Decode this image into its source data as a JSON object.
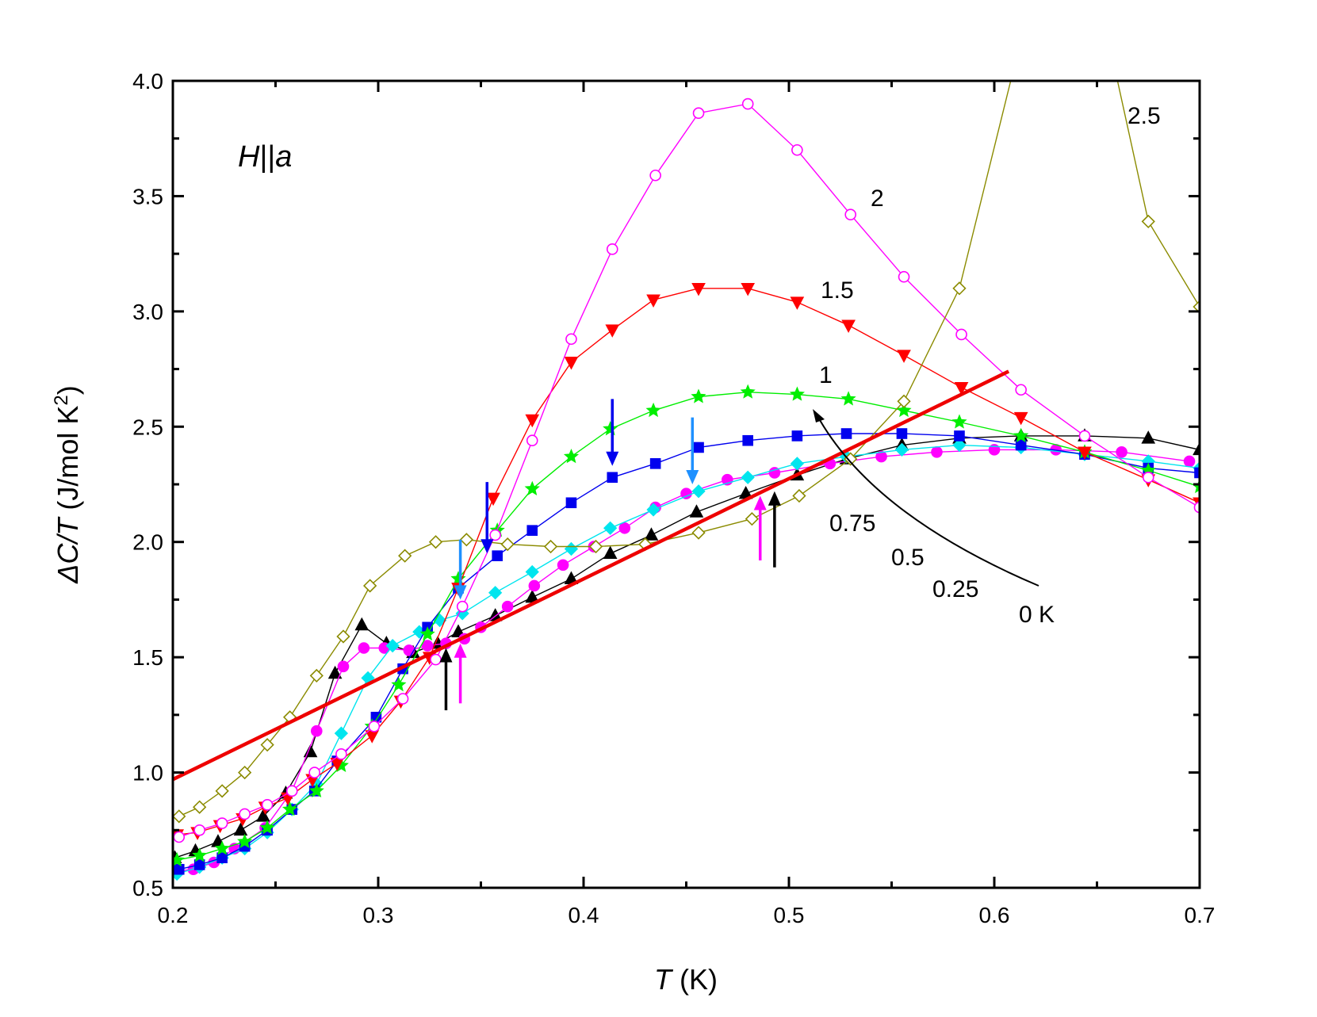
{
  "chart_data": {
    "type": "line",
    "xlabel": {
      "italic": "T",
      "rest": " (K)"
    },
    "ylabel": {
      "italic": "ΔC/T",
      "rest": " (J/mol K",
      "sup": "2",
      "close": ")"
    },
    "xlim": [
      0.2,
      0.7
    ],
    "ylim": [
      0.5,
      4.0
    ],
    "xticks": [
      "0.2",
      "0.3",
      "0.4",
      "0.5",
      "0.6",
      "0.7"
    ],
    "yticks": [
      "0.5",
      "1.0",
      "1.5",
      "2.0",
      "2.5",
      "3.0",
      "3.5",
      "4.0"
    ],
    "annotation": {
      "italic1": "H",
      "bars": "||",
      "italic2": "a"
    },
    "labels": {
      "h2_5": "2.5",
      "h2": "2",
      "h1_5": "1.5",
      "h1": "1",
      "h0_75": "0.75",
      "h0_5": "0.5",
      "h0_25": "0.25",
      "h0": "0 K"
    },
    "series": [
      {
        "name": "0 K",
        "color": "#000000",
        "marker": "triangle-up",
        "filled": true,
        "x": [
          0.201,
          0.211,
          0.222,
          0.233,
          0.244,
          0.255,
          0.267,
          0.279,
          0.292,
          0.304,
          0.317,
          0.329,
          0.339,
          0.357,
          0.375,
          0.394,
          0.413,
          0.433,
          0.455,
          0.479,
          0.504,
          0.528,
          0.555,
          0.583,
          0.613,
          0.644,
          0.675,
          0.7
        ],
        "y": [
          0.63,
          0.66,
          0.7,
          0.75,
          0.81,
          0.91,
          1.09,
          1.43,
          1.64,
          1.56,
          1.52,
          1.56,
          1.61,
          1.68,
          1.76,
          1.84,
          1.95,
          2.03,
          2.13,
          2.21,
          2.29,
          2.36,
          2.42,
          2.45,
          2.46,
          2.46,
          2.45,
          2.4
        ]
      },
      {
        "name": "0.25",
        "color": "#ff00ff",
        "marker": "circle",
        "filled": true,
        "x": [
          0.2,
          0.21,
          0.22,
          0.23,
          0.245,
          0.258,
          0.27,
          0.283,
          0.293,
          0.303,
          0.315,
          0.324,
          0.333,
          0.342,
          0.35,
          0.363,
          0.376,
          0.39,
          0.405,
          0.42,
          0.435,
          0.45,
          0.47,
          0.493,
          0.52,
          0.545,
          0.572,
          0.6,
          0.63,
          0.662,
          0.695
        ],
        "y": [
          0.57,
          0.58,
          0.61,
          0.67,
          0.76,
          0.92,
          1.18,
          1.46,
          1.54,
          1.54,
          1.53,
          1.55,
          1.56,
          1.58,
          1.63,
          1.72,
          1.81,
          1.9,
          1.98,
          2.06,
          2.15,
          2.21,
          2.27,
          2.3,
          2.34,
          2.37,
          2.39,
          2.4,
          2.4,
          2.39,
          2.35
        ]
      },
      {
        "name": "0.5",
        "color": "#00e5ee",
        "marker": "diamond",
        "filled": true,
        "x": [
          0.202,
          0.213,
          0.224,
          0.235,
          0.246,
          0.258,
          0.27,
          0.282,
          0.295,
          0.307,
          0.32,
          0.33,
          0.341,
          0.357,
          0.375,
          0.394,
          0.413,
          0.434,
          0.456,
          0.48,
          0.504,
          0.528,
          0.555,
          0.583,
          0.613,
          0.644,
          0.675,
          0.7
        ],
        "y": [
          0.56,
          0.59,
          0.63,
          0.67,
          0.74,
          0.84,
          0.95,
          1.17,
          1.41,
          1.55,
          1.61,
          1.66,
          1.69,
          1.78,
          1.87,
          1.97,
          2.06,
          2.14,
          2.22,
          2.28,
          2.34,
          2.37,
          2.4,
          2.42,
          2.41,
          2.38,
          2.35,
          2.32
        ]
      },
      {
        "name": "0.75",
        "color": "#0000ee",
        "marker": "square",
        "filled": true,
        "x": [
          0.203,
          0.213,
          0.224,
          0.235,
          0.246,
          0.258,
          0.269,
          0.28,
          0.299,
          0.312,
          0.324,
          0.339,
          0.358,
          0.375,
          0.394,
          0.414,
          0.435,
          0.456,
          0.48,
          0.504,
          0.528,
          0.555,
          0.583,
          0.613,
          0.644,
          0.675,
          0.7
        ],
        "y": [
          0.58,
          0.6,
          0.63,
          0.68,
          0.75,
          0.84,
          0.92,
          1.05,
          1.24,
          1.45,
          1.63,
          1.8,
          1.94,
          2.05,
          2.17,
          2.28,
          2.34,
          2.41,
          2.44,
          2.46,
          2.47,
          2.47,
          2.46,
          2.42,
          2.38,
          2.32,
          2.3
        ]
      },
      {
        "name": "1",
        "color": "#00ee00",
        "marker": "star",
        "filled": true,
        "x": [
          0.202,
          0.213,
          0.224,
          0.235,
          0.246,
          0.257,
          0.27,
          0.282,
          0.297,
          0.31,
          0.324,
          0.339,
          0.358,
          0.375,
          0.394,
          0.413,
          0.434,
          0.456,
          0.48,
          0.504,
          0.529,
          0.556,
          0.583,
          0.613,
          0.644,
          0.675,
          0.7
        ],
        "y": [
          0.62,
          0.64,
          0.67,
          0.7,
          0.76,
          0.84,
          0.92,
          1.03,
          1.2,
          1.38,
          1.6,
          1.84,
          2.05,
          2.23,
          2.37,
          2.49,
          2.57,
          2.63,
          2.65,
          2.64,
          2.62,
          2.57,
          2.52,
          2.46,
          2.39,
          2.31,
          2.24
        ]
      },
      {
        "name": "1.5",
        "color": "#ff0000",
        "marker": "triangle-down",
        "filled": true,
        "x": [
          0.202,
          0.212,
          0.223,
          0.234,
          0.245,
          0.256,
          0.268,
          0.28,
          0.297,
          0.311,
          0.325,
          0.339,
          0.356,
          0.375,
          0.394,
          0.414,
          0.434,
          0.456,
          0.48,
          0.504,
          0.529,
          0.556,
          0.584,
          0.613,
          0.644,
          0.675,
          0.7
        ],
        "y": [
          0.73,
          0.74,
          0.77,
          0.8,
          0.85,
          0.89,
          0.97,
          1.04,
          1.16,
          1.31,
          1.5,
          1.8,
          2.19,
          2.53,
          2.78,
          2.92,
          3.05,
          3.1,
          3.1,
          3.04,
          2.94,
          2.81,
          2.67,
          2.54,
          2.39,
          2.27,
          2.17
        ]
      },
      {
        "name": "2",
        "color": "#ff00ff",
        "marker": "circle",
        "filled": false,
        "x": [
          0.203,
          0.213,
          0.224,
          0.235,
          0.246,
          0.258,
          0.269,
          0.282,
          0.298,
          0.312,
          0.328,
          0.341,
          0.357,
          0.375,
          0.394,
          0.414,
          0.435,
          0.456,
          0.48,
          0.504,
          0.53,
          0.556,
          0.584,
          0.613,
          0.644,
          0.675,
          0.7
        ],
        "y": [
          0.72,
          0.75,
          0.78,
          0.82,
          0.86,
          0.92,
          1.0,
          1.08,
          1.2,
          1.32,
          1.49,
          1.72,
          2.03,
          2.44,
          2.88,
          3.27,
          3.59,
          3.86,
          3.9,
          3.7,
          3.42,
          3.15,
          2.9,
          2.66,
          2.46,
          2.28,
          2.15
        ]
      },
      {
        "name": "2.5",
        "color": "#8b8b00",
        "marker": "diamond",
        "filled": false,
        "x": [
          0.203,
          0.213,
          0.224,
          0.235,
          0.246,
          0.257,
          0.27,
          0.283,
          0.296,
          0.313,
          0.328,
          0.343,
          0.363,
          0.384,
          0.406,
          0.43,
          0.456,
          0.482,
          0.505,
          0.53,
          0.556,
          0.583,
          0.608,
          0.66,
          0.675,
          0.7
        ],
        "y": [
          0.81,
          0.85,
          0.92,
          1.0,
          1.12,
          1.24,
          1.42,
          1.59,
          1.81,
          1.94,
          2.0,
          2.01,
          1.99,
          1.98,
          1.98,
          1.99,
          2.04,
          2.1,
          2.2,
          2.36,
          2.61,
          3.1,
          4.0,
          4.0,
          3.39,
          3.02
        ]
      }
    ],
    "fit_line": {
      "color": "#ee0000",
      "x": [
        0.2,
        0.607
      ],
      "y": [
        0.97,
        2.74
      ]
    },
    "arrows": [
      {
        "color": "#0000ee",
        "direction": "down",
        "x": 0.353,
        "y_from": 2.26,
        "y_to": 1.95
      },
      {
        "color": "#0000ee",
        "direction": "down",
        "x": 0.414,
        "y_from": 2.62,
        "y_to": 2.33
      },
      {
        "color": "#1e90ff",
        "direction": "down",
        "x": 0.34,
        "y_from": 2.01,
        "y_to": 1.75
      },
      {
        "color": "#1e90ff",
        "direction": "down",
        "x": 0.453,
        "y_from": 2.54,
        "y_to": 2.25
      },
      {
        "color": "#000000",
        "direction": "up",
        "x": 0.333,
        "y_from": 1.27,
        "y_to": 1.54
      },
      {
        "color": "#ff00ff",
        "direction": "up",
        "x": 0.34,
        "y_from": 1.3,
        "y_to": 1.56
      },
      {
        "color": "#ff00ff",
        "direction": "up",
        "x": 0.486,
        "y_from": 1.92,
        "y_to": 2.2
      },
      {
        "color": "#000000",
        "direction": "up",
        "x": 0.493,
        "y_from": 1.89,
        "y_to": 2.22
      }
    ]
  }
}
